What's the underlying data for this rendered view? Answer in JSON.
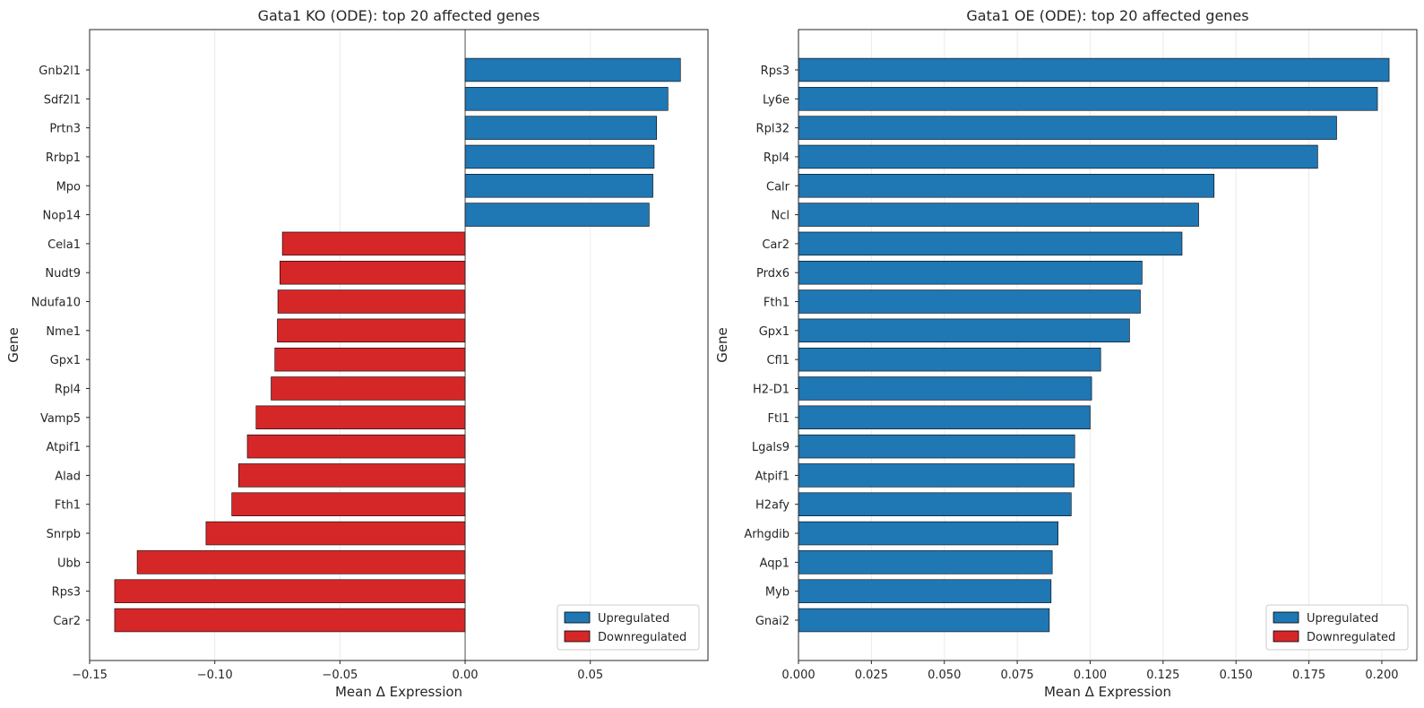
{
  "chart_data": [
    {
      "type": "bar",
      "orientation": "horizontal",
      "title": "Gata1 KO (ODE): top 20 affected genes",
      "xlabel": "Mean Δ Expression",
      "ylabel": "Gene",
      "xlim": [
        -0.15,
        0.097
      ],
      "xticks": [
        -0.15,
        -0.1,
        -0.05,
        0.0,
        0.05
      ],
      "xtick_labels": [
        "−0.15",
        "−0.10",
        "−0.05",
        "0.00",
        "0.05"
      ],
      "grid": "x",
      "zero_line": true,
      "legend_position": "lower-right",
      "categories": [
        "Gnb2l1",
        "Sdf2l1",
        "Prtn3",
        "Rrbp1",
        "Mpo",
        "Nop14",
        "Cela1",
        "Nudt9",
        "Ndufa10",
        "Nme1",
        "Gpx1",
        "Rpl4",
        "Vamp5",
        "Atpif1",
        "Alad",
        "Fth1",
        "Snrpb",
        "Ubb",
        "Rps3",
        "Car2"
      ],
      "values": [
        0.086,
        0.081,
        0.0765,
        0.0755,
        0.075,
        0.0735,
        -0.073,
        -0.074,
        -0.0748,
        -0.075,
        -0.076,
        -0.0775,
        -0.0835,
        -0.087,
        -0.0905,
        -0.0932,
        -0.1035,
        -0.131,
        -0.14,
        -0.14
      ]
    },
    {
      "type": "bar",
      "orientation": "horizontal",
      "title": "Gata1 OE (ODE): top 20 affected genes",
      "xlabel": "Mean Δ Expression",
      "ylabel": "Gene",
      "xlim": [
        0.0,
        0.212
      ],
      "xticks": [
        0.0,
        0.025,
        0.05,
        0.075,
        0.1,
        0.125,
        0.15,
        0.175,
        0.2
      ],
      "xtick_labels": [
        "0.000",
        "0.025",
        "0.050",
        "0.075",
        "0.100",
        "0.125",
        "0.150",
        "0.175",
        "0.200"
      ],
      "grid": "x",
      "zero_line": false,
      "legend_position": "lower-right",
      "categories": [
        "Rps3",
        "Ly6e",
        "Rpl32",
        "Rpl4",
        "Calr",
        "Ncl",
        "Car2",
        "Prdx6",
        "Fth1",
        "Gpx1",
        "Cfl1",
        "H2-D1",
        "Ftl1",
        "Lgals9",
        "Atpif1",
        "H2afy",
        "Arhgdib",
        "Aqp1",
        "Myb",
        "Gnai2"
      ],
      "values": [
        0.2025,
        0.1985,
        0.1845,
        0.178,
        0.1425,
        0.1372,
        0.1315,
        0.1178,
        0.1172,
        0.1135,
        0.1036,
        0.1005,
        0.1,
        0.0947,
        0.0945,
        0.0935,
        0.089,
        0.087,
        0.0866,
        0.086
      ]
    }
  ],
  "legend": {
    "up_label": "Upregulated",
    "down_label": "Downregulated"
  },
  "colors": {
    "up": "#1f77b4",
    "down": "#d62728",
    "edge": "#000000",
    "grid": "#ebebeb",
    "axes": "#262626"
  }
}
